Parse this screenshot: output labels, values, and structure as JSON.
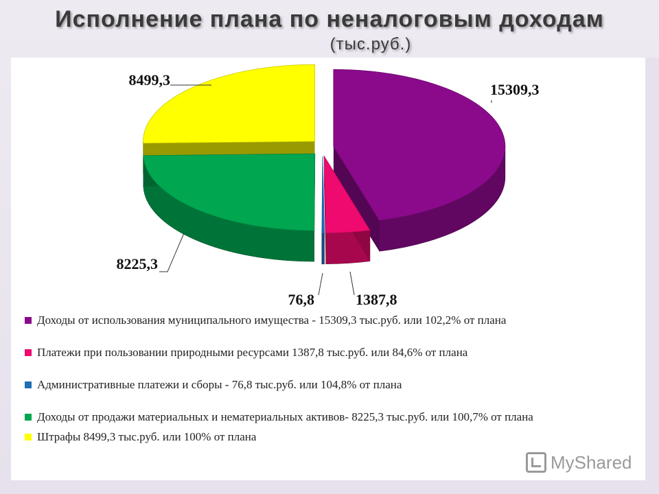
{
  "slide": {
    "title": "Исполнение плана по неналоговым доходам",
    "subtitle": "(тыс.руб.)"
  },
  "chart_data": {
    "type": "pie",
    "categories": [
      "Доходы от использования муниципального имущества",
      "Платежи при пользовании природными ресурсами",
      "Административные платежи и сборы",
      "Доходы от продажи материальных и нематериальных активов",
      "Штрафы"
    ],
    "values": [
      15309.3,
      1387.8,
      76.8,
      8225.3,
      8499.3
    ],
    "data_labels": [
      "15309,3",
      "1387,8",
      "76,8",
      "8225,3",
      "8499,3"
    ],
    "colors": [
      "#8b0a8b",
      "#ee0a6e",
      "#1f6fb4",
      "#00a650",
      "#ffff00"
    ],
    "legend_placement": "bottom",
    "three_d": true
  },
  "legend": {
    "items": [
      {
        "text": "Доходы от использования муниципального имущества - 15309,3 тыс.руб. или 102,2% от плана",
        "color": "#8b0a8b"
      },
      {
        "text": "Платежи при пользовании природными ресурсами 1387,8 тыс.руб. или 84,6% от плана",
        "color": "#ee0a6e"
      },
      {
        "text": "Административные  платежи и сборы - 76,8 тыс.руб. или 104,8% от плана",
        "color": "#1f6fb4"
      },
      {
        "text": "Доходы от продажи материальных  и нематериальных  активов- 8225,3 тыс.руб. или 100,7% от плана",
        "color": "#00a650"
      },
      {
        "text": "Штрафы 8499,3 тыс.руб. или 100% от плана",
        "color": "#ffff00"
      }
    ]
  },
  "watermark": {
    "text": "MyShared",
    "icon": "myshared-logo-icon"
  }
}
